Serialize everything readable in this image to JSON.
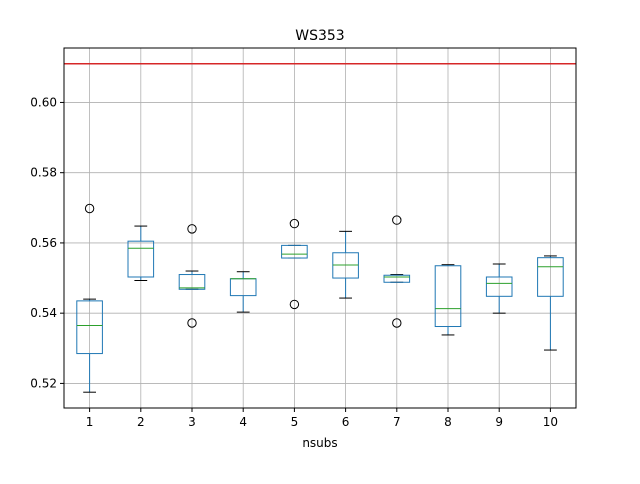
{
  "chart_data": {
    "type": "box",
    "title": "WS353",
    "xlabel": "nsubs",
    "ylabel": "",
    "categories": [
      "1",
      "2",
      "3",
      "4",
      "5",
      "6",
      "7",
      "8",
      "9",
      "10"
    ],
    "ylim": [
      0.513,
      0.6155
    ],
    "yticks": [
      0.52,
      0.54,
      0.56,
      0.58,
      0.6
    ],
    "ytick_labels": [
      "0.52",
      "0.54",
      "0.56",
      "0.58",
      "0.60"
    ],
    "grid": true,
    "reference_line": {
      "y": 0.611,
      "color": "#d62728"
    },
    "colors": {
      "box": "#1f77b4",
      "median": "#2ca02c",
      "whisker": "#000000",
      "grid": "#b0b0b0",
      "flier": "#000000"
    },
    "boxes": [
      {
        "category": "1",
        "whislo": 0.5175,
        "q1": 0.5285,
        "med": 0.5365,
        "q3": 0.5435,
        "whishi": 0.544,
        "fliers": [
          0.5698
        ]
      },
      {
        "category": "2",
        "whislo": 0.5493,
        "q1": 0.5503,
        "med": 0.5585,
        "q3": 0.5605,
        "whishi": 0.5648,
        "fliers": []
      },
      {
        "category": "3",
        "whislo": 0.5468,
        "q1": 0.5468,
        "med": 0.5472,
        "q3": 0.551,
        "whishi": 0.552,
        "fliers": [
          0.564,
          0.5372
        ]
      },
      {
        "category": "4",
        "whislo": 0.5403,
        "q1": 0.545,
        "med": 0.5498,
        "q3": 0.5498,
        "whishi": 0.5518,
        "fliers": []
      },
      {
        "category": "5",
        "whislo": 0.5557,
        "q1": 0.5557,
        "med": 0.5568,
        "q3": 0.5593,
        "whishi": 0.5593,
        "fliers": [
          0.5655,
          0.5425
        ]
      },
      {
        "category": "6",
        "whislo": 0.5443,
        "q1": 0.55,
        "med": 0.5537,
        "q3": 0.5572,
        "whishi": 0.5633,
        "fliers": []
      },
      {
        "category": "7",
        "whislo": 0.5488,
        "q1": 0.5488,
        "med": 0.5503,
        "q3": 0.5508,
        "whishi": 0.551,
        "fliers": [
          0.5665,
          0.5372
        ]
      },
      {
        "category": "8",
        "whislo": 0.5338,
        "q1": 0.5362,
        "med": 0.5413,
        "q3": 0.5535,
        "whishi": 0.5538,
        "fliers": []
      },
      {
        "category": "9",
        "whislo": 0.54,
        "q1": 0.5448,
        "med": 0.5485,
        "q3": 0.5503,
        "whishi": 0.554,
        "fliers": []
      },
      {
        "category": "10",
        "whislo": 0.5295,
        "q1": 0.5448,
        "med": 0.5532,
        "q3": 0.5558,
        "whishi": 0.5563,
        "fliers": []
      }
    ]
  }
}
